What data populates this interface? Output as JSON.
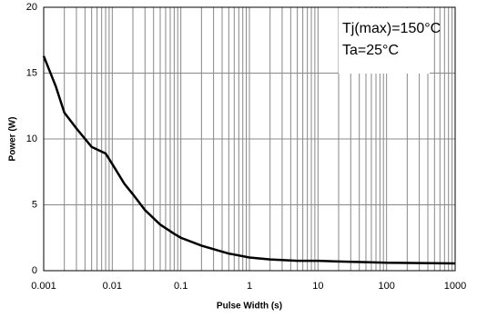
{
  "chart_data": {
    "type": "line",
    "xscale": "log",
    "grid": true,
    "minor_grid": true,
    "xlabel": "Pulse Width (s)",
    "ylabel": "Power (W)",
    "annotations": [
      "Tj(max)=150°C",
      "Ta=25°C"
    ],
    "x": [
      0.001,
      0.0015,
      0.002,
      0.003,
      0.005,
      0.008,
      0.01,
      0.015,
      0.02,
      0.03,
      0.05,
      0.08,
      0.1,
      0.2,
      0.5,
      1,
      2,
      5,
      10,
      20,
      50,
      100,
      1000
    ],
    "series": [
      {
        "name": "Power",
        "color": "#000000",
        "values": [
          16.3,
          14,
          12,
          10.8,
          9.4,
          8.9,
          8.1,
          6.6,
          5.8,
          4.6,
          3.5,
          2.8,
          2.5,
          1.9,
          1.3,
          1.0,
          0.85,
          0.75,
          0.75,
          0.7,
          0.65,
          0.6,
          0.55
        ]
      }
    ],
    "xlim": [
      0.001,
      1000
    ],
    "xticks": [
      0.001,
      0.01,
      0.1,
      1,
      10,
      100,
      1000
    ],
    "ylim": [
      0,
      20
    ],
    "yticks": [
      0,
      5,
      10,
      15,
      20
    ]
  }
}
